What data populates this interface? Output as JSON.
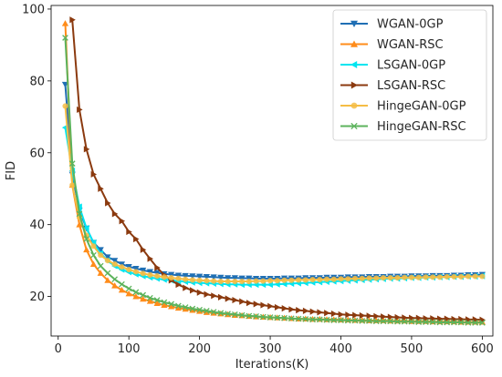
{
  "chart_data": {
    "type": "line",
    "xlabel": "Iterations(K)",
    "ylabel": "FID",
    "xlim": [
      -10,
      615
    ],
    "ylim": [
      9,
      101
    ],
    "xticks": [
      0,
      100,
      200,
      300,
      400,
      500,
      600
    ],
    "yticks": [
      20,
      40,
      60,
      80,
      100
    ],
    "grid": false,
    "legend_position": "top-right",
    "series": [
      {
        "name": "WGAN-0GP",
        "color": "#1f6fb4",
        "marker": "triangle-down",
        "x": [
          10,
          20,
          30,
          40,
          50,
          60,
          70,
          80,
          90,
          100,
          110,
          120,
          130,
          140,
          150,
          160,
          170,
          180,
          190,
          200,
          210,
          220,
          230,
          240,
          250,
          260,
          270,
          280,
          290,
          300,
          310,
          320,
          330,
          340,
          350,
          360,
          370,
          380,
          390,
          400,
          410,
          420,
          430,
          440,
          450,
          460,
          470,
          480,
          490,
          500,
          510,
          520,
          530,
          540,
          550,
          560,
          570,
          580,
          590,
          600
        ],
        "values": [
          79,
          54,
          44,
          39,
          35,
          33,
          31,
          30,
          29,
          28.3,
          27.8,
          27.3,
          26.9,
          26.6,
          26.3,
          26.1,
          25.9,
          25.8,
          25.7,
          25.6,
          25.5,
          25.4,
          25.3,
          25.2,
          25.2,
          25.1,
          25.1,
          25,
          25,
          25,
          25,
          25.1,
          25.1,
          25.1,
          25.2,
          25.2,
          25.2,
          25.3,
          25.3,
          25.3,
          25.4,
          25.4,
          25.4,
          25.5,
          25.5,
          25.5,
          25.6,
          25.6,
          25.6,
          25.7,
          25.7,
          25.7,
          25.8,
          25.8,
          25.8,
          25.9,
          25.9,
          26,
          26,
          26.1
        ]
      },
      {
        "name": "WGAN-RSC",
        "color": "#ff8c1a",
        "marker": "triangle-up",
        "x": [
          10,
          20,
          30,
          40,
          50,
          60,
          70,
          80,
          90,
          100,
          110,
          120,
          130,
          140,
          150,
          160,
          170,
          180,
          190,
          200,
          210,
          220,
          230,
          240,
          250,
          260,
          270,
          280,
          290,
          300,
          310,
          320,
          330,
          340,
          350,
          360,
          370,
          380,
          390,
          400,
          410,
          420,
          430,
          440,
          450,
          460,
          470,
          480,
          490,
          500,
          510,
          520,
          530,
          540,
          550,
          560,
          570,
          580,
          590,
          600
        ],
        "values": [
          96,
          51,
          40,
          33,
          29,
          26.5,
          24.5,
          23,
          21.8,
          20.8,
          20,
          19.3,
          18.7,
          18.1,
          17.6,
          17.2,
          16.8,
          16.5,
          16.2,
          15.9,
          15.6,
          15.4,
          15.2,
          15,
          14.8,
          14.7,
          14.5,
          14.4,
          14.3,
          14.2,
          14.1,
          14,
          13.9,
          13.8,
          13.8,
          13.7,
          13.7,
          13.6,
          13.6,
          13.5,
          13.5,
          13.4,
          13.4,
          13.3,
          13.3,
          13.3,
          13.2,
          13.2,
          13.2,
          13.1,
          13.1,
          13.1,
          13,
          13,
          13,
          13,
          12.9,
          12.9,
          12.9,
          12.9
        ]
      },
      {
        "name": "LSGAN-0GP",
        "color": "#00e5f0",
        "marker": "triangle-left",
        "x": [
          10,
          20,
          30,
          40,
          50,
          60,
          70,
          80,
          90,
          100,
          110,
          120,
          130,
          140,
          150,
          160,
          170,
          180,
          190,
          200,
          210,
          220,
          230,
          240,
          250,
          260,
          270,
          280,
          290,
          300,
          310,
          320,
          330,
          340,
          350,
          360,
          370,
          380,
          390,
          400,
          410,
          420,
          430,
          440,
          450,
          460,
          470,
          480,
          490,
          500,
          510,
          520,
          530,
          540,
          550,
          560,
          570,
          580,
          590,
          600
        ],
        "values": [
          67,
          55,
          45,
          39,
          35,
          32,
          30,
          28.5,
          27.5,
          26.8,
          26.2,
          25.7,
          25.3,
          25,
          24.7,
          24.5,
          24.3,
          24.1,
          23.9,
          23.8,
          23.7,
          23.6,
          23.5,
          23.4,
          23.4,
          23.3,
          23.3,
          23.3,
          23.3,
          23.3,
          23.4,
          23.5,
          23.6,
          23.7,
          23.8,
          23.9,
          24,
          24.1,
          24.2,
          24.3,
          24.4,
          24.5,
          24.6,
          24.7,
          24.8,
          24.9,
          25,
          25,
          25.1,
          25.2,
          25.2,
          25.3,
          25.3,
          25.4,
          25.4,
          25.5,
          25.5,
          25.6,
          25.6,
          25.7
        ]
      },
      {
        "name": "LSGAN-RSC",
        "color": "#8b3a0f",
        "marker": "triangle-right",
        "x": [
          20,
          30,
          40,
          50,
          60,
          70,
          80,
          90,
          100,
          110,
          120,
          130,
          140,
          150,
          160,
          170,
          180,
          190,
          200,
          210,
          220,
          230,
          240,
          250,
          260,
          270,
          280,
          290,
          300,
          310,
          320,
          330,
          340,
          350,
          360,
          370,
          380,
          390,
          400,
          410,
          420,
          430,
          440,
          450,
          460,
          470,
          480,
          490,
          500,
          510,
          520,
          530,
          540,
          550,
          560,
          570,
          580,
          590,
          600
        ],
        "values": [
          97,
          72,
          61,
          54,
          50,
          46,
          43,
          41,
          38,
          36,
          33,
          30.5,
          28,
          26,
          24.5,
          23.3,
          22.4,
          21.7,
          21.1,
          20.6,
          20.2,
          19.8,
          19.4,
          19,
          18.6,
          18.2,
          17.9,
          17.6,
          17.3,
          17,
          16.7,
          16.4,
          16.2,
          16,
          15.8,
          15.6,
          15.4,
          15.2,
          15,
          14.9,
          14.8,
          14.7,
          14.6,
          14.5,
          14.4,
          14.3,
          14.2,
          14.1,
          14,
          14,
          13.9,
          13.9,
          13.8,
          13.8,
          13.7,
          13.7,
          13.6,
          13.6,
          13.5
        ]
      },
      {
        "name": "HingeGAN-0GP",
        "color": "#f5bd45",
        "marker": "circle",
        "x": [
          10,
          20,
          30,
          40,
          50,
          60,
          70,
          80,
          90,
          100,
          110,
          120,
          130,
          140,
          150,
          160,
          170,
          180,
          190,
          200,
          210,
          220,
          230,
          240,
          250,
          260,
          270,
          280,
          290,
          300,
          310,
          320,
          330,
          340,
          350,
          360,
          370,
          380,
          390,
          400,
          410,
          420,
          430,
          440,
          450,
          460,
          470,
          480,
          490,
          500,
          510,
          520,
          530,
          540,
          550,
          560,
          570,
          580,
          590,
          600
        ],
        "values": [
          73,
          51,
          42,
          37,
          34,
          31.5,
          30,
          29,
          28.2,
          27.5,
          26.9,
          26.4,
          26,
          25.7,
          25.4,
          25.2,
          25,
          24.8,
          24.6,
          24.5,
          24.4,
          24.3,
          24.2,
          24.2,
          24.2,
          24.2,
          24.2,
          24.3,
          24.3,
          24.4,
          24.4,
          24.5,
          24.5,
          24.6,
          24.6,
          24.7,
          24.7,
          24.8,
          24.8,
          24.9,
          24.9,
          25,
          25,
          25.1,
          25.1,
          25.2,
          25.2,
          25.2,
          25.3,
          25.3,
          25.3,
          25.4,
          25.4,
          25.4,
          25.5,
          25.5,
          25.5,
          25.6,
          25.6,
          25.6
        ]
      },
      {
        "name": "HingeGAN-RSC",
        "color": "#5cb35c",
        "marker": "x",
        "x": [
          10,
          20,
          30,
          40,
          50,
          60,
          70,
          80,
          90,
          100,
          110,
          120,
          130,
          140,
          150,
          160,
          170,
          180,
          190,
          200,
          210,
          220,
          230,
          240,
          250,
          260,
          270,
          280,
          290,
          300,
          310,
          320,
          330,
          340,
          350,
          360,
          370,
          380,
          390,
          400,
          410,
          420,
          430,
          440,
          450,
          460,
          470,
          480,
          490,
          500,
          510,
          520,
          530,
          540,
          550,
          560,
          570,
          580,
          590,
          600
        ],
        "values": [
          92,
          57,
          43,
          36,
          31.5,
          28.5,
          26.5,
          24.8,
          23.4,
          22.2,
          21.2,
          20.4,
          19.6,
          19,
          18.4,
          17.9,
          17.4,
          17,
          16.6,
          16.3,
          16,
          15.7,
          15.4,
          15.2,
          15,
          14.8,
          14.6,
          14.5,
          14.3,
          14.2,
          14.1,
          14,
          13.9,
          13.8,
          13.7,
          13.6,
          13.6,
          13.5,
          13.4,
          13.4,
          13.3,
          13.3,
          13.2,
          13.2,
          13.1,
          13.1,
          13.1,
          13,
          13,
          13,
          12.9,
          12.9,
          12.9,
          12.8,
          12.8,
          12.8,
          12.8,
          12.7,
          12.7,
          12.7
        ]
      }
    ]
  }
}
